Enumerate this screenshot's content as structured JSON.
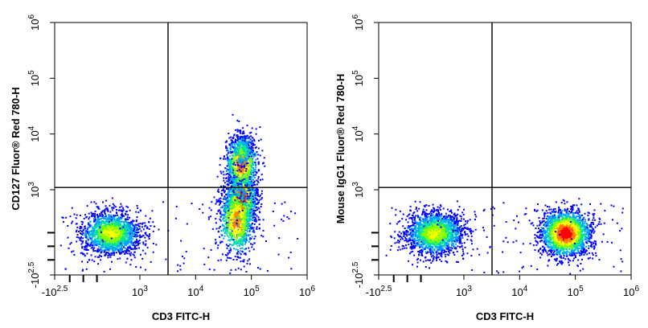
{
  "chart_data": [
    {
      "type": "scatter",
      "subtype": "flow-cytometry-density-dot-plot",
      "xlabel": "CD3 FITC-H",
      "ylabel": "CD127  Fluor® Red 780-H",
      "xscale": "biexponential",
      "yscale": "biexponential",
      "xlim": [
        -316,
        1000000
      ],
      "ylim": [
        -316,
        1000000
      ],
      "x_ticks": [
        {
          "base": "-10",
          "exp": "2.5"
        },
        {
          "base": "10",
          "exp": "3"
        },
        {
          "base": "10",
          "exp": "4"
        },
        {
          "base": "10",
          "exp": "5"
        },
        {
          "base": "10",
          "exp": "6"
        }
      ],
      "y_ticks": [
        {
          "base": "-10",
          "exp": "2.5"
        },
        {
          "base": "10",
          "exp": "3"
        },
        {
          "base": "10",
          "exp": "4"
        },
        {
          "base": "10",
          "exp": "5"
        },
        {
          "base": "10",
          "exp": "6"
        }
      ],
      "gate_lines": {
        "x": 3200,
        "y": 1100
      },
      "color_scale": [
        "#0000ff",
        "#00a0ff",
        "#00e0a0",
        "#80ff00",
        "#ffff00",
        "#ff8000",
        "#ff0000"
      ],
      "populations": [
        {
          "center_x": 300,
          "center_y": 150,
          "spread": "wide",
          "density": "medium"
        },
        {
          "center_x": 65000,
          "center_y": 700,
          "vertical_range": [
            0,
            8000
          ],
          "density": "high"
        }
      ]
    },
    {
      "type": "scatter",
      "subtype": "flow-cytometry-density-dot-plot",
      "xlabel": "CD3 FITC-H",
      "ylabel": "Mouse IgG1 Fluor® Red 780-H",
      "xscale": "biexponential",
      "yscale": "biexponential",
      "xlim": [
        -316,
        1000000
      ],
      "ylim": [
        -316,
        1000000
      ],
      "x_ticks": [
        {
          "base": "-10",
          "exp": "2.5"
        },
        {
          "base": "10",
          "exp": "3"
        },
        {
          "base": "10",
          "exp": "4"
        },
        {
          "base": "10",
          "exp": "5"
        },
        {
          "base": "10",
          "exp": "6"
        }
      ],
      "y_ticks": [
        {
          "base": "-10",
          "exp": "2.5"
        },
        {
          "base": "10",
          "exp": "3"
        },
        {
          "base": "10",
          "exp": "4"
        },
        {
          "base": "10",
          "exp": "5"
        },
        {
          "base": "10",
          "exp": "6"
        }
      ],
      "gate_lines": {
        "x": 3200,
        "y": 1100
      },
      "color_scale": [
        "#0000ff",
        "#00a0ff",
        "#00e0a0",
        "#80ff00",
        "#ffff00",
        "#ff8000",
        "#ff0000"
      ],
      "populations": [
        {
          "center_x": 300,
          "center_y": 150,
          "spread": "wide",
          "density": "medium"
        },
        {
          "center_x": 65000,
          "center_y": 150,
          "spread": "compact",
          "density": "high"
        }
      ]
    }
  ]
}
